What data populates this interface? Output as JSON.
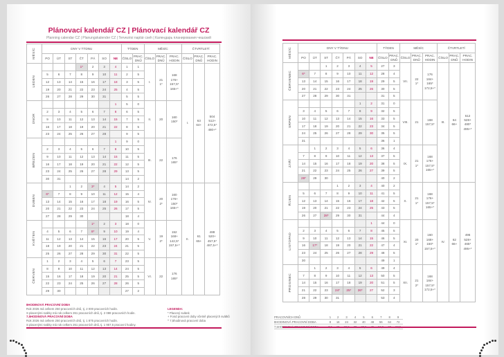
{
  "colors": {
    "accent": "#c2185b",
    "border": "#bdbdbd",
    "weekend": "#efefef"
  },
  "header": {
    "title": "Plánovací kalendář CZ | Plánovací kalendář CZ",
    "subtitle": "Planning calendar CZ | Planungskalender CZ | Tervezési naptár cseh | Календарь планирования чешский",
    "month_col": "MĚSÍC",
    "days_group": "DNY V TÝDNU",
    "week_group": "TÝDEN",
    "month_group": "MĚSÍC",
    "quarter_group": "ČTVRTLETÍ",
    "day_names": [
      "PO",
      "ÚT",
      "ST",
      "ČT",
      "PÁ",
      "SO",
      "NE"
    ],
    "number": "ČÍSLO",
    "work_days": "PRAC. DNŮ",
    "work_hours": "PRAC. HODIN"
  },
  "left": {
    "months": [
      {
        "name": "LEDEN",
        "num": "I.",
        "days": [
          "21",
          "1*"
        ],
        "hours": [
          "168",
          "176+",
          "157,5*",
          "165+*"
        ],
        "rows": [
          [
            "",
            "",
            "",
            "1*",
            "2",
            "3",
            "4",
            "1",
            "1"
          ],
          [
            "5",
            "6",
            "7",
            "8",
            "9",
            "10",
            "11",
            "2",
            "5"
          ],
          [
            "12",
            "13",
            "14",
            "15",
            "16",
            "17",
            "18",
            "3",
            "5"
          ],
          [
            "19",
            "20",
            "21",
            "22",
            "23",
            "24",
            "25",
            "4",
            "5"
          ],
          [
            "26",
            "27",
            "28",
            "29",
            "30",
            "31",
            "",
            "5",
            "5"
          ]
        ]
      },
      {
        "name": "ÚNOR",
        "num": "II.",
        "days": [
          "20"
        ],
        "hours": [
          "160",
          "150*"
        ],
        "rows": [
          [
            "",
            "",
            "",
            "",
            "",
            "",
            "1",
            "5",
            "0"
          ],
          [
            "2",
            "3",
            "4",
            "5",
            "6",
            "7",
            "8",
            "6",
            "5"
          ],
          [
            "9",
            "10",
            "11",
            "12",
            "13",
            "14",
            "15",
            "7",
            "5"
          ],
          [
            "16",
            "17",
            "18",
            "19",
            "20",
            "21",
            "22",
            "8",
            "5"
          ],
          [
            "23",
            "24",
            "25",
            "26",
            "27",
            "28",
            "",
            "9",
            "5"
          ]
        ]
      },
      {
        "name": "BŘEZEN",
        "num": "III.",
        "days": [
          "22"
        ],
        "hours": [
          "176",
          "165*"
        ],
        "rows": [
          [
            "",
            "",
            "",
            "",
            "",
            "",
            "1",
            "9",
            "0"
          ],
          [
            "2",
            "3",
            "4",
            "5",
            "6",
            "7",
            "8",
            "10",
            "5"
          ],
          [
            "9",
            "10",
            "11",
            "12",
            "13",
            "14",
            "15",
            "11",
            "5"
          ],
          [
            "16",
            "17",
            "18",
            "19",
            "20",
            "21",
            "22",
            "12",
            "5"
          ],
          [
            "23",
            "24",
            "25",
            "26",
            "27",
            "28",
            "29",
            "13",
            "5"
          ],
          [
            "30",
            "31",
            "",
            "",
            "",
            "",
            "",
            "14",
            "2"
          ]
        ]
      },
      {
        "name": "DUBEN",
        "num": "IV.",
        "days": [
          "20",
          "2*"
        ],
        "hours": [
          "160",
          "176+",
          "150*",
          "165+*"
        ],
        "rows": [
          [
            "",
            "",
            "1",
            "2",
            "3*",
            "4",
            "5",
            "14",
            "2"
          ],
          [
            "6*",
            "7",
            "8",
            "9",
            "10",
            "11",
            "12",
            "15",
            "4"
          ],
          [
            "13",
            "14",
            "15",
            "16",
            "17",
            "18",
            "19",
            "16",
            "5"
          ],
          [
            "20",
            "21",
            "22",
            "23",
            "24",
            "25",
            "26",
            "17",
            "5"
          ],
          [
            "27",
            "28",
            "29",
            "30",
            "",
            "",
            "",
            "18",
            "4"
          ]
        ]
      },
      {
        "name": "KVĚTEN",
        "num": "V.",
        "days": [
          "19",
          "2*"
        ],
        "hours": [
          "152",
          "168+",
          "142,5*",
          "157,5+*"
        ],
        "rows": [
          [
            "",
            "",
            "",
            "",
            "1*",
            "2",
            "3",
            "18",
            "0"
          ],
          [
            "4",
            "5",
            "6",
            "7",
            "8*",
            "9",
            "10",
            "19",
            "4"
          ],
          [
            "11",
            "12",
            "13",
            "14",
            "15",
            "16",
            "17",
            "20",
            "5"
          ],
          [
            "18",
            "19",
            "20",
            "21",
            "22",
            "23",
            "24",
            "21",
            "5"
          ],
          [
            "25",
            "26",
            "27",
            "28",
            "29",
            "30",
            "31",
            "22",
            "5"
          ]
        ]
      },
      {
        "name": "ČERVEN",
        "num": "VI.",
        "days": [
          "22"
        ],
        "hours": [
          "176",
          "165*"
        ],
        "rows": [
          [
            "1",
            "2",
            "3",
            "4",
            "5",
            "6",
            "7",
            "23",
            "5"
          ],
          [
            "8",
            "9",
            "10",
            "11",
            "12",
            "13",
            "14",
            "24",
            "5"
          ],
          [
            "15",
            "16",
            "17",
            "18",
            "19",
            "20",
            "21",
            "25",
            "5"
          ],
          [
            "22",
            "23",
            "24",
            "25",
            "26",
            "27",
            "28",
            "26",
            "5"
          ],
          [
            "29",
            "30",
            "",
            "",
            "",
            "",
            "",
            "27",
            "2"
          ]
        ]
      }
    ],
    "quarters": [
      {
        "num": "I.",
        "days": [
          "63",
          "64+"
        ],
        "hours": [
          "504",
          "512+",
          "472,5*",
          "480+*"
        ]
      },
      {
        "num": "II.",
        "days": [
          "61",
          "65+"
        ],
        "hours": [
          "488",
          "520+",
          "457,5*",
          "487,5+*"
        ]
      }
    ],
    "notes": [
      {
        "text": "8HODINOVÁ PRACOVNÍ DOBA",
        "heading": true
      },
      {
        "text": "Rok 2026 má celkem 250 pracovních dnů, tj. 2 000 pracovních hodin."
      },
      {
        "text": "S placenými svátky má rok celkem 261 pracovních dnů, tj. 2 088 pracovních hodin."
      },
      {
        "text": "7,5HODINOVÁ PRACOVNÍ DOBA",
        "heading": true
      },
      {
        "text": "Rok 2026 má celkem 250 pracovních dnů, tj. 1 875 pracovních hodin."
      },
      {
        "text": "S placenými svátky má rok celkem 261 pracovních dnů, tj. 1 957,5 pracovní hodiny."
      }
    ],
    "legend": {
      "title": "LEGENDA:",
      "items": [
        "*  Placený svátek",
        "+  Fond pracovní doby včetně placených svátků",
        "^  7,5hodinová pracovní doba"
      ]
    }
  },
  "right": {
    "months": [
      {
        "name": "ČERVENEC",
        "num": "VII.",
        "days": [
          "22",
          "1*"
        ],
        "hours": [
          "176",
          "184+",
          "165*",
          "172,5+*"
        ],
        "rows": [
          [
            "",
            "",
            "1",
            "2",
            "3",
            "4",
            "5",
            "27",
            "3"
          ],
          [
            "6*",
            "7",
            "8",
            "9",
            "10",
            "11",
            "12",
            "28",
            "4"
          ],
          [
            "13",
            "14",
            "15",
            "16",
            "17",
            "18",
            "19",
            "29",
            "5"
          ],
          [
            "20",
            "21",
            "22",
            "23",
            "24",
            "25",
            "26",
            "30",
            "5"
          ],
          [
            "27",
            "28",
            "29",
            "30",
            "31",
            "",
            "",
            "31",
            "5"
          ]
        ]
      },
      {
        "name": "SRPEN",
        "num": "VIII.",
        "days": [
          "21"
        ],
        "hours": [
          "168",
          "157,5*"
        ],
        "rows": [
          [
            "",
            "",
            "",
            "",
            "",
            "1",
            "2",
            "31",
            "0"
          ],
          [
            "3",
            "4",
            "5",
            "6",
            "7",
            "8",
            "9",
            "32",
            "5"
          ],
          [
            "10",
            "11",
            "12",
            "13",
            "14",
            "15",
            "16",
            "33",
            "5"
          ],
          [
            "17",
            "18",
            "19",
            "20",
            "21",
            "22",
            "23",
            "34",
            "5"
          ],
          [
            "24",
            "25",
            "26",
            "27",
            "28",
            "29",
            "30",
            "35",
            "5"
          ],
          [
            "31",
            "",
            "",
            "",
            "",
            "",
            "",
            "36",
            "1"
          ]
        ]
      },
      {
        "name": "ZÁŘÍ",
        "num": "IX.",
        "days": [
          "21",
          "1*"
        ],
        "hours": [
          "168",
          "176+",
          "157,5*",
          "165+*"
        ],
        "rows": [
          [
            "",
            "1",
            "2",
            "3",
            "4",
            "5",
            "6",
            "36",
            "4"
          ],
          [
            "7",
            "8",
            "9",
            "10",
            "11",
            "12",
            "13",
            "37",
            "5"
          ],
          [
            "14",
            "15",
            "16",
            "17",
            "18",
            "19",
            "20",
            "38",
            "5"
          ],
          [
            "21",
            "22",
            "23",
            "24",
            "25",
            "26",
            "27",
            "39",
            "5"
          ],
          [
            "28*",
            "29",
            "30",
            "",
            "",
            "",
            "",
            "40",
            "2"
          ]
        ]
      },
      {
        "name": "ŘÍJEN",
        "num": "X.",
        "days": [
          "21",
          "1*"
        ],
        "hours": [
          "168",
          "176+",
          "157,5*",
          "165+*"
        ],
        "rows": [
          [
            "",
            "",
            "",
            "1",
            "2",
            "3",
            "4",
            "40",
            "2"
          ],
          [
            "5",
            "6",
            "7",
            "8",
            "9",
            "10",
            "11",
            "41",
            "5"
          ],
          [
            "12",
            "13",
            "14",
            "15",
            "16",
            "17",
            "18",
            "42",
            "5"
          ],
          [
            "19",
            "20",
            "21",
            "22",
            "23",
            "24",
            "25",
            "43",
            "5"
          ],
          [
            "26",
            "27",
            "28*",
            "29",
            "30",
            "31",
            "",
            "44",
            "4"
          ]
        ]
      },
      {
        "name": "LISTOPAD",
        "num": "XI.",
        "days": [
          "20",
          "1*"
        ],
        "hours": [
          "160",
          "168+",
          "150*",
          "157,5+*"
        ],
        "rows": [
          [
            "",
            "",
            "",
            "",
            "",
            "",
            "1",
            "44",
            "0"
          ],
          [
            "2",
            "3",
            "4",
            "5",
            "6",
            "7",
            "8",
            "45",
            "5"
          ],
          [
            "9",
            "10",
            "11",
            "12",
            "13",
            "14",
            "15",
            "46",
            "5"
          ],
          [
            "16",
            "17*",
            "18",
            "19",
            "20",
            "21",
            "22",
            "47",
            "4"
          ],
          [
            "23",
            "24",
            "25",
            "26",
            "27",
            "28",
            "29",
            "48",
            "5"
          ],
          [
            "30",
            "",
            "",
            "",
            "",
            "",
            "",
            "49",
            "1"
          ]
        ]
      },
      {
        "name": "PROSINEC",
        "num": "XII.",
        "days": [
          "21",
          "2*"
        ],
        "hours": [
          "168",
          "184+",
          "157,5*",
          "172,5+*"
        ],
        "rows": [
          [
            "",
            "1",
            "2",
            "3",
            "4",
            "5",
            "6",
            "49",
            "4"
          ],
          [
            "7",
            "8",
            "9",
            "10",
            "11",
            "12",
            "13",
            "50",
            "5"
          ],
          [
            "14",
            "15",
            "16",
            "17",
            "18",
            "19",
            "20",
            "51",
            "5"
          ],
          [
            "21",
            "22",
            "23",
            "24*",
            "25*",
            "26*",
            "27",
            "52",
            "3"
          ],
          [
            "28",
            "29",
            "30",
            "31",
            "",
            "",
            "",
            "53",
            "4"
          ]
        ]
      }
    ],
    "quarters": [
      {
        "num": "III.",
        "days": [
          "64",
          "66+"
        ],
        "hours": [
          "512",
          "528+",
          "480*",
          "495+*"
        ]
      },
      {
        "num": "IV.",
        "days": [
          "62",
          "66+"
        ],
        "hours": [
          "496",
          "528+",
          "465*",
          "495+*"
        ]
      }
    ],
    "footer_table": {
      "rows": [
        {
          "label": "PRACOVNÍCH DNŮ",
          "values": [
            "1",
            "2",
            "3",
            "4",
            "5",
            "6",
            "7",
            "8",
            "9"
          ]
        },
        {
          "label": "8HODINOVÁ PRACOVNÍ DOBA",
          "values": [
            "8",
            "16",
            "24",
            "32",
            "40",
            "48",
            "56",
            "64",
            "72"
          ]
        },
        {
          "label": "7,5HODINOVÁ PRACOVNÍ DOBA",
          "values": [
            "7,5",
            "15",
            "22,5",
            "30",
            "37,5",
            "45",
            "52,5",
            "60",
            "67,5"
          ]
        }
      ]
    }
  }
}
